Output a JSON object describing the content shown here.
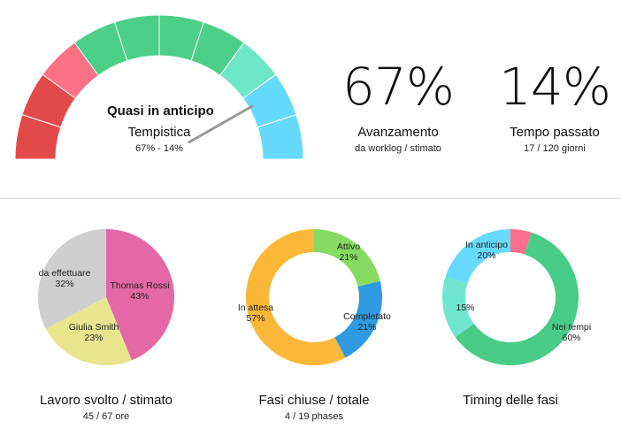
{
  "gauge": {
    "needle_label": "Quasi in anticipo",
    "title": "Tempistica",
    "subtitle": "67% - 14%",
    "needle_value": 0.835,
    "segment_colors": [
      "#e24a4a",
      "#e24a4a",
      "#fb7185",
      "#4ccf88",
      "#4ccf88",
      "#4ccf88",
      "#4ccf88",
      "#6ee7c8",
      "#66dafd",
      "#66dafd"
    ]
  },
  "progress": {
    "value": "67%",
    "title": "Avanzamento",
    "subtitle": "da worklog / stimato"
  },
  "time": {
    "value": "14%",
    "title": "Tempo passato",
    "subtitle": "17 / 120 giorni"
  },
  "work": {
    "title": "Lavoro svolto / stimato",
    "subtitle": "45 / 67 ore",
    "chart_data": {
      "type": "pie",
      "slices": [
        {
          "label": "Thomas Rossi",
          "pct": "43%",
          "value": 43,
          "color": "#e468a6"
        },
        {
          "label": "Giulia Smith",
          "pct": "23%",
          "value": 23,
          "color": "#e9e48e"
        },
        {
          "label": "da effettuare",
          "pct": "32%",
          "value": 32,
          "color": "#cfcfcf"
        }
      ]
    }
  },
  "phases": {
    "title": "Fasi chiuse / totale",
    "subtitle": "4 / 19 phases",
    "chart_data": {
      "type": "pie",
      "slices": [
        {
          "label": "Attivo",
          "pct": "21%",
          "value": 21,
          "color": "#86dc62"
        },
        {
          "label": "Completato",
          "pct": "21%",
          "value": 21,
          "color": "#2f9ae0"
        },
        {
          "label": "In attesa",
          "pct": "57%",
          "value": 57,
          "color": "#fbb737"
        }
      ]
    }
  },
  "timing": {
    "title": "Timing delle fasi",
    "chart_data": {
      "type": "pie",
      "slices": [
        {
          "label": "",
          "pct": "",
          "value": 5,
          "color": "#fb6f8d"
        },
        {
          "label": "Nei tempi",
          "pct": "60%",
          "value": 60,
          "color": "#48cc87"
        },
        {
          "label": "",
          "pct": "15%",
          "value": 15,
          "color": "#6fe6cf"
        },
        {
          "label": "In anticipo",
          "pct": "20%",
          "value": 20,
          "color": "#67dafd"
        }
      ]
    }
  }
}
